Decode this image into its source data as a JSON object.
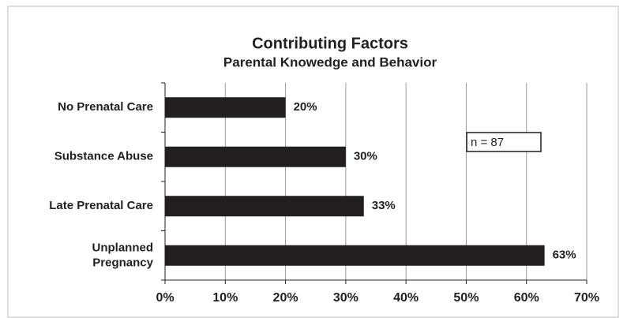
{
  "chart_data": {
    "type": "bar",
    "orientation": "horizontal",
    "title": "Contributing Factors",
    "subtitle": "Parental Knowedge and Behavior",
    "categories": [
      "No Prenatal Care",
      "Substance Abuse",
      "Late Prenatal Care",
      "Unplanned\nPregnancy"
    ],
    "values": [
      20,
      30,
      33,
      63
    ],
    "value_labels": [
      "20%",
      "30%",
      "33%",
      "63%"
    ],
    "color": "#231f20",
    "xlim": [
      0,
      70
    ],
    "xticks": [
      {
        "value": 0,
        "label": "0%"
      },
      {
        "value": 10,
        "label": "10%"
      },
      {
        "value": 20,
        "label": "20%"
      },
      {
        "value": 30,
        "label": "30%"
      },
      {
        "value": 40,
        "label": "40%"
      },
      {
        "value": 50,
        "label": "50%"
      },
      {
        "value": 60,
        "label": "60%"
      },
      {
        "value": 70,
        "label": "70%"
      }
    ],
    "grid": true,
    "annotation": "n = 87"
  }
}
